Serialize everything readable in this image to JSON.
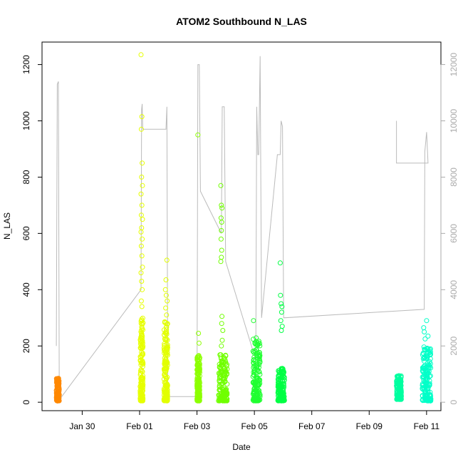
{
  "chart_data": {
    "type": "scatter",
    "title": "ATOM2 Southbound N_LAS",
    "xlabel": "Date",
    "ylabel": "N_LAS",
    "x_ticks": [
      "Jan 30",
      "Feb 01",
      "Feb 03",
      "Feb 05",
      "Feb 07",
      "Feb 09",
      "Feb 11"
    ],
    "x_tick_days": [
      30,
      32,
      34,
      36,
      38,
      40,
      42
    ],
    "xlim_days": [
      28.6,
      42.5
    ],
    "ylim": [
      -30,
      1280
    ],
    "y_ticks": [
      0,
      200,
      400,
      600,
      800,
      1000,
      1200
    ],
    "y2_ticks": [
      0,
      2000,
      4000,
      6000,
      8000,
      10000,
      12000
    ],
    "y2lim": [
      -300,
      12800
    ],
    "y2_color": "#aaaaaa",
    "grid": false,
    "legend": "none",
    "series": [
      {
        "color": "#ff8800",
        "x_days": [
          29.1,
          29.2
        ],
        "y_range": [
          5,
          85
        ],
        "outliers": []
      },
      {
        "color": "#e6ff00",
        "x_days": [
          32.02,
          32.12
        ],
        "y_range": [
          5,
          300
        ],
        "outliers": [
          [
            32.05,
            1235
          ],
          [
            32.08,
            1015
          ],
          [
            32.06,
            970
          ],
          [
            32.09,
            850
          ],
          [
            32.07,
            800
          ],
          [
            32.1,
            770
          ],
          [
            32.05,
            740
          ],
          [
            32.08,
            700
          ],
          [
            32.06,
            665
          ],
          [
            32.1,
            650
          ],
          [
            32.07,
            620
          ],
          [
            32.05,
            605
          ],
          [
            32.09,
            580
          ],
          [
            32.06,
            555
          ],
          [
            32.08,
            520
          ],
          [
            32.1,
            480
          ],
          [
            32.05,
            460
          ],
          [
            32.07,
            430
          ],
          [
            32.09,
            400
          ],
          [
            32.06,
            360
          ],
          [
            32.08,
            340
          ]
        ]
      },
      {
        "color": "#e2ff00",
        "x_days": [
          32.85,
          32.98
        ],
        "y_range": [
          5,
          300
        ],
        "outliers": [
          [
            32.95,
            505
          ],
          [
            32.92,
            435
          ],
          [
            32.9,
            400
          ],
          [
            32.93,
            380
          ],
          [
            32.96,
            360
          ],
          [
            32.91,
            335
          ],
          [
            32.94,
            310
          ]
        ]
      },
      {
        "color": "#8cff00",
        "x_days": [
          34.0,
          34.1
        ],
        "y_range": [
          5,
          175
        ],
        "outliers": [
          [
            34.03,
            950
          ],
          [
            34.05,
            245
          ],
          [
            34.07,
            210
          ]
        ]
      },
      {
        "color": "#70ff00",
        "x_days": [
          34.75,
          35.05
        ],
        "y_range": [
          5,
          170
        ],
        "outliers": [
          [
            34.83,
            770
          ],
          [
            34.85,
            700
          ],
          [
            34.87,
            690
          ],
          [
            34.84,
            655
          ],
          [
            34.86,
            640
          ],
          [
            34.85,
            610
          ],
          [
            34.84,
            580
          ],
          [
            34.86,
            540
          ],
          [
            34.85,
            515
          ],
          [
            34.83,
            500
          ],
          [
            34.87,
            305
          ],
          [
            34.86,
            280
          ],
          [
            34.9,
            255
          ],
          [
            34.88,
            220
          ],
          [
            34.85,
            200
          ]
        ]
      },
      {
        "color": "#20ff30",
        "x_days": [
          35.95,
          36.2
        ],
        "y_range": [
          5,
          230
        ],
        "outliers": [
          [
            35.97,
            290
          ]
        ]
      },
      {
        "color": "#00ff44",
        "x_days": [
          36.82,
          37.05
        ],
        "y_range": [
          5,
          120
        ],
        "outliers": [
          [
            36.9,
            495
          ],
          [
            36.91,
            380
          ],
          [
            36.93,
            350
          ],
          [
            36.96,
            340
          ],
          [
            36.95,
            320
          ],
          [
            36.92,
            290
          ],
          [
            36.97,
            270
          ],
          [
            36.94,
            255
          ]
        ]
      },
      {
        "color": "#00ffa0",
        "x_days": [
          40.95,
          41.12
        ],
        "y_range": [
          10,
          95
        ],
        "outliers": []
      },
      {
        "color": "#00ffc8",
        "x_days": [
          41.85,
          42.15
        ],
        "y_range": [
          5,
          200
        ],
        "outliers": [
          [
            41.9,
            265
          ],
          [
            41.92,
            250
          ],
          [
            42.0,
            290
          ],
          [
            42.05,
            235
          ],
          [
            41.95,
            225
          ]
        ]
      }
    ],
    "secondary_line": {
      "color": "#bbbbbb",
      "points": [
        [
          29.1,
          2000
        ],
        [
          29.13,
          11300
        ],
        [
          29.17,
          11400
        ],
        [
          29.2,
          300
        ],
        [
          29.25,
          150
        ],
        [
          32.05,
          4000
        ],
        [
          32.07,
          10400
        ],
        [
          32.09,
          10600
        ],
        [
          32.11,
          9700
        ],
        [
          32.92,
          9700
        ],
        [
          32.95,
          10500
        ],
        [
          32.98,
          200
        ],
        [
          34.0,
          200
        ],
        [
          34.03,
          12000
        ],
        [
          34.08,
          12000
        ],
        [
          34.12,
          7500
        ],
        [
          34.85,
          6000
        ],
        [
          34.88,
          10500
        ],
        [
          34.95,
          10500
        ],
        [
          35.0,
          5000
        ],
        [
          36.05,
          1500
        ],
        [
          36.08,
          10500
        ],
        [
          36.12,
          8800
        ],
        [
          36.15,
          8800
        ],
        [
          36.2,
          12300
        ],
        [
          36.25,
          3000
        ],
        [
          36.8,
          8800
        ],
        [
          36.9,
          8800
        ],
        [
          36.93,
          10000
        ],
        [
          36.98,
          9800
        ],
        [
          37.02,
          3000
        ],
        [
          41.92,
          3300
        ],
        [
          41.94,
          8900
        ],
        [
          42.0,
          9600
        ],
        [
          42.05,
          8500
        ],
        [
          40.95,
          8500
        ],
        [
          40.95,
          10000
        ]
      ]
    }
  }
}
